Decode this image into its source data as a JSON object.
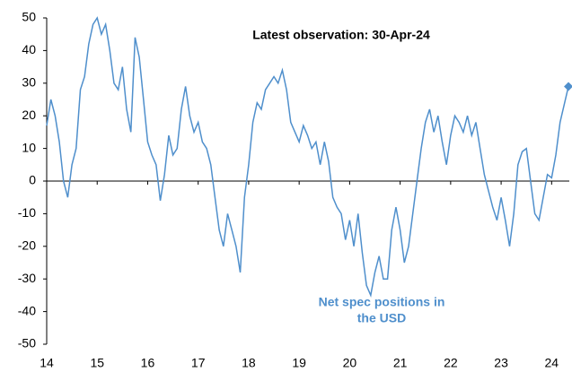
{
  "chart_data": {
    "type": "line",
    "annotation": "Latest observation:   30-Apr-24",
    "series_label": [
      "Net spec positions in",
      "the USD"
    ],
    "x": [
      14,
      14.083,
      14.167,
      14.25,
      14.333,
      14.417,
      14.5,
      14.583,
      14.667,
      14.75,
      14.833,
      14.917,
      15,
      15.083,
      15.167,
      15.25,
      15.333,
      15.417,
      15.5,
      15.583,
      15.667,
      15.75,
      15.833,
      15.917,
      16,
      16.083,
      16.167,
      16.25,
      16.333,
      16.417,
      16.5,
      16.583,
      16.667,
      16.75,
      16.833,
      16.917,
      17,
      17.083,
      17.167,
      17.25,
      17.333,
      17.417,
      17.5,
      17.583,
      17.667,
      17.75,
      17.833,
      17.917,
      18,
      18.083,
      18.167,
      18.25,
      18.333,
      18.417,
      18.5,
      18.583,
      18.667,
      18.75,
      18.833,
      18.917,
      19,
      19.083,
      19.167,
      19.25,
      19.333,
      19.417,
      19.5,
      19.583,
      19.667,
      19.75,
      19.833,
      19.917,
      20,
      20.083,
      20.167,
      20.25,
      20.333,
      20.417,
      20.5,
      20.583,
      20.667,
      20.75,
      20.833,
      20.917,
      21,
      21.083,
      21.167,
      21.25,
      21.333,
      21.417,
      21.5,
      21.583,
      21.667,
      21.75,
      21.833,
      21.917,
      22,
      22.083,
      22.167,
      22.25,
      22.333,
      22.417,
      22.5,
      22.583,
      22.667,
      22.75,
      22.833,
      22.917,
      23,
      23.083,
      23.167,
      23.25,
      23.333,
      23.417,
      23.5,
      23.583,
      23.667,
      23.75,
      23.833,
      23.917,
      24,
      24.083,
      24.167,
      24.333
    ],
    "values": [
      17,
      25,
      20,
      12,
      0,
      -5,
      5,
      10,
      28,
      32,
      42,
      48,
      50,
      45,
      48,
      40,
      30,
      28,
      35,
      22,
      15,
      44,
      38,
      25,
      12,
      8,
      5,
      -6,
      2,
      14,
      8,
      10,
      22,
      29,
      20,
      15,
      18,
      12,
      10,
      5,
      -5,
      -15,
      -20,
      -10,
      -15,
      -20,
      -28,
      -5,
      5,
      18,
      24,
      22,
      28,
      30,
      32,
      30,
      34,
      28,
      18,
      15,
      12,
      17,
      14,
      10,
      12,
      5,
      12,
      6,
      -5,
      -8,
      -10,
      -18,
      -12,
      -20,
      -10,
      -22,
      -32,
      -35,
      -28,
      -23,
      -30,
      -30,
      -15,
      -8,
      -15,
      -25,
      -20,
      -10,
      0,
      10,
      18,
      22,
      15,
      20,
      12,
      5,
      14,
      20,
      18,
      15,
      20,
      14,
      18,
      10,
      2,
      -3,
      -8,
      -12,
      -5,
      -12,
      -20,
      -10,
      5,
      9,
      10,
      0,
      -10,
      -12,
      -5,
      2,
      1,
      8,
      18,
      29
    ],
    "color": "#4f8fcc",
    "xlim": [
      14,
      24.35
    ],
    "xticks": [
      14,
      15,
      16,
      17,
      18,
      19,
      20,
      21,
      22,
      23,
      24
    ],
    "ylim": [
      -50,
      50
    ],
    "yticks": [
      -50,
      -40,
      -30,
      -20,
      -10,
      0,
      10,
      20,
      30,
      40,
      50
    ],
    "grid": false
  }
}
